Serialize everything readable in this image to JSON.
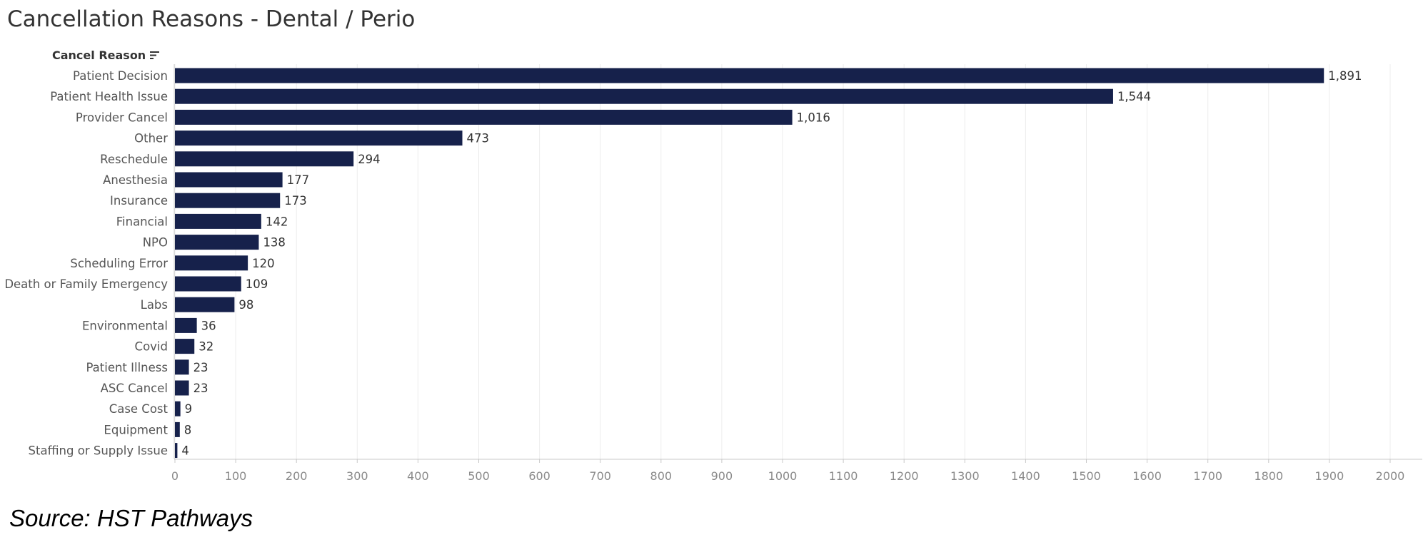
{
  "page": {
    "title": "Cancellation Reasons - Dental / Perio",
    "field_header": "Cancel Reason",
    "sort_icon": "sort-descending-icon",
    "source": "Source: HST Pathways"
  },
  "colors": {
    "bar": "#16214b",
    "grid": "#ececec",
    "axis": "#c8c8c8"
  },
  "chart_data": {
    "type": "bar",
    "orientation": "horizontal",
    "title": "Cancellation Reasons - Dental / Perio",
    "ylabel": "Cancel Reason",
    "xlabel": "",
    "xlim": [
      0,
      2000
    ],
    "xticks": [
      0,
      100,
      200,
      300,
      400,
      500,
      600,
      700,
      800,
      900,
      1000,
      1100,
      1200,
      1300,
      1400,
      1500,
      1600,
      1700,
      1800,
      1900,
      2000
    ],
    "grid": true,
    "categories": [
      "Patient Decision",
      "Patient Health Issue",
      "Provider Cancel",
      "Other",
      "Reschedule",
      "Anesthesia",
      "Insurance",
      "Financial",
      "NPO",
      "Scheduling Error",
      "Death or Family Emergency",
      "Labs",
      "Environmental",
      "Covid",
      "Patient Illness",
      "ASC Cancel",
      "Case Cost",
      "Equipment",
      "Staffing or Supply Issue"
    ],
    "values": [
      1891,
      1544,
      1016,
      473,
      294,
      177,
      173,
      142,
      138,
      120,
      109,
      98,
      36,
      32,
      23,
      23,
      9,
      8,
      4
    ],
    "value_labels": [
      "1,891",
      "1,544",
      "1,016",
      "473",
      "294",
      "177",
      "173",
      "142",
      "138",
      "120",
      "109",
      "98",
      "36",
      "32",
      "23",
      "23",
      "9",
      "8",
      "4"
    ]
  }
}
